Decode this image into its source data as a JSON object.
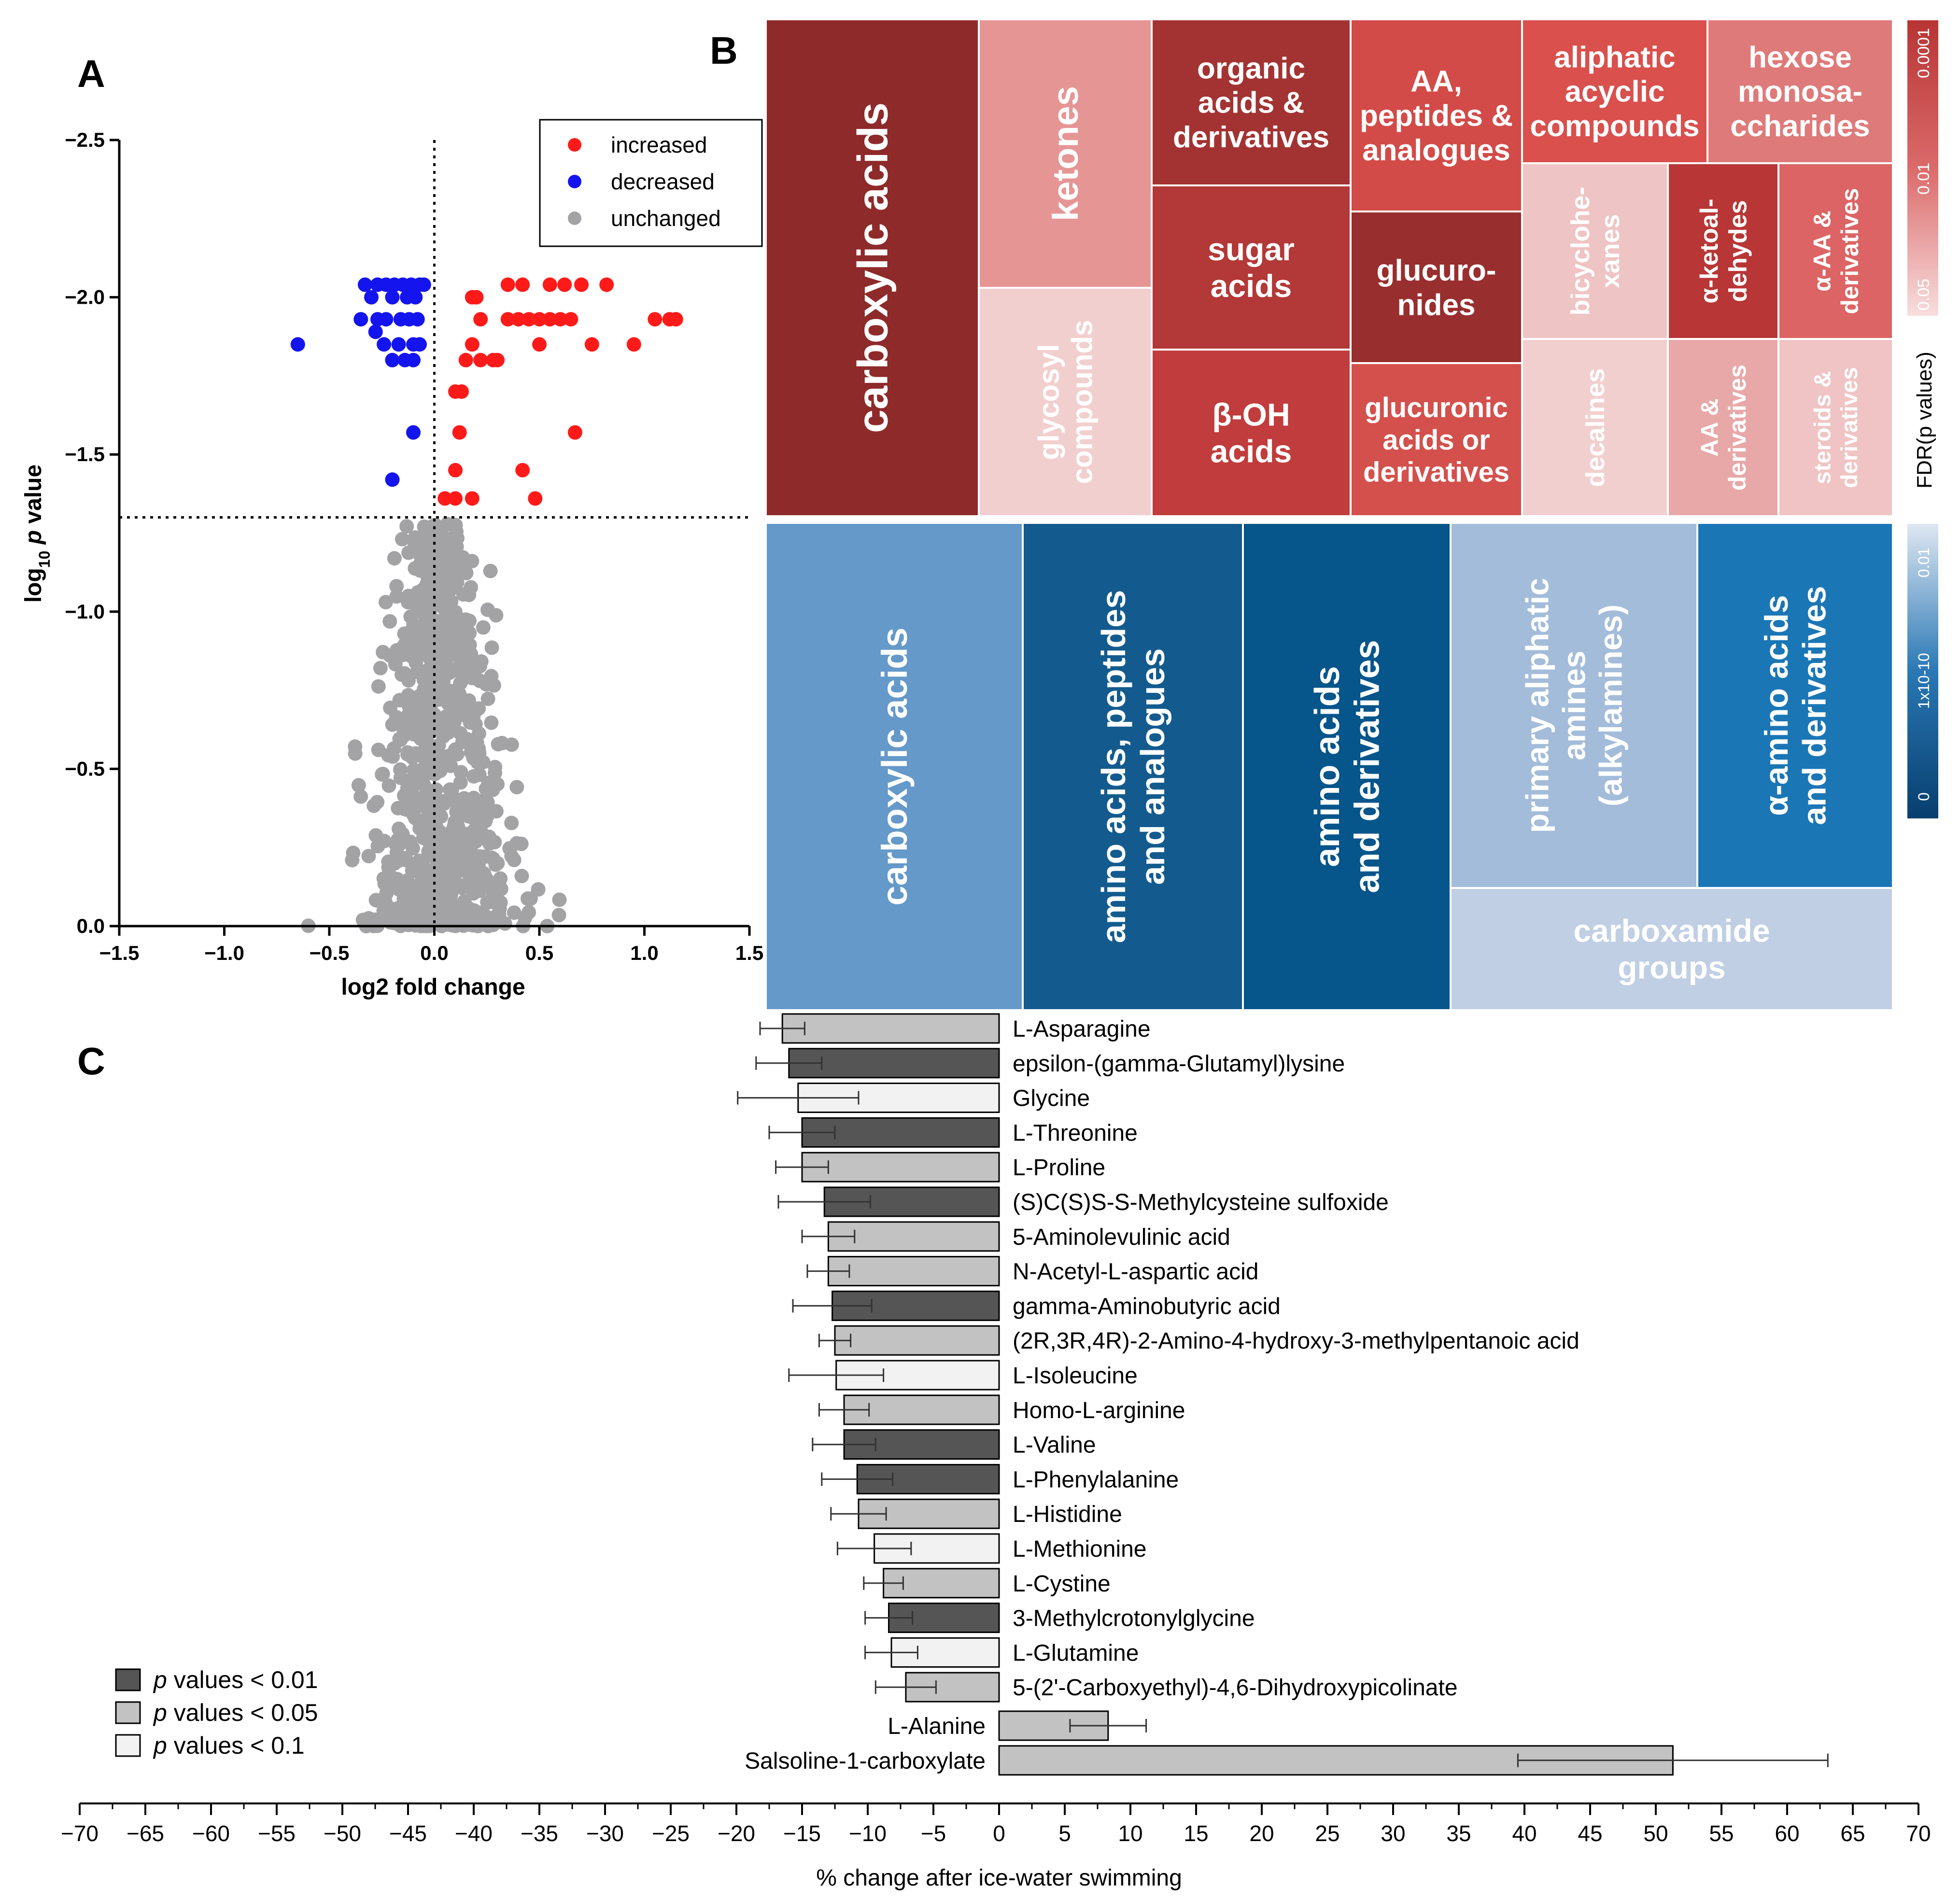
{
  "panel_letters": {
    "a": "A",
    "b": "B",
    "c": "C"
  },
  "colors": {
    "increased": "#ff1a1a",
    "decreased": "#1414ee",
    "unchanged": "#a3a3a6",
    "p01": "#555555",
    "p05": "#c2c2c2",
    "p10": "#f2f2f2",
    "red_scale": [
      "#8f2a2a",
      "#c13c3c",
      "#d9504d",
      "#e69595",
      "#f2cfcf"
    ],
    "blue_scale": [
      "#0b4a7c",
      "#135b8e",
      "#1b76b6",
      "#6499c9",
      "#a3bcda",
      "#c0cfe4"
    ]
  },
  "chart_data": [
    {
      "type": "scatter",
      "panel": "A",
      "xlabel": "log2 fold change",
      "ylabel_main": "log",
      "ylabel_sub": "10",
      "ylabel_italic": "p",
      "ylabel_rest": "value",
      "xlim": [
        -1.5,
        1.5
      ],
      "ylim": [
        0.0,
        -2.5
      ],
      "xticks": [
        "−1.5",
        "−1.0",
        "−0.5",
        "0.0",
        "0.5",
        "1.0",
        "1.5"
      ],
      "yticks": [
        "−2.5",
        "−2.0",
        "−1.5",
        "−1.0",
        "−0.5",
        "0.0"
      ],
      "threshold_y": -1.3,
      "threshold_x": 0.0,
      "legend": [
        "increased",
        "decreased",
        "unchanged"
      ],
      "series": [
        {
          "name": "increased",
          "points": [
            [
              0.18,
              -2.0
            ],
            [
              0.2,
              -2.0
            ],
            [
              0.35,
              -2.04
            ],
            [
              0.42,
              -2.04
            ],
            [
              0.55,
              -2.04
            ],
            [
              0.62,
              -2.04
            ],
            [
              0.7,
              -2.04
            ],
            [
              0.82,
              -2.04
            ],
            [
              0.22,
              -1.93
            ],
            [
              0.35,
              -1.93
            ],
            [
              0.4,
              -1.93
            ],
            [
              0.45,
              -1.93
            ],
            [
              0.5,
              -1.93
            ],
            [
              0.55,
              -1.93
            ],
            [
              0.6,
              -1.93
            ],
            [
              0.65,
              -1.93
            ],
            [
              1.05,
              -1.93
            ],
            [
              1.12,
              -1.93
            ],
            [
              1.15,
              -1.93
            ],
            [
              0.18,
              -1.85
            ],
            [
              0.5,
              -1.85
            ],
            [
              0.75,
              -1.85
            ],
            [
              0.95,
              -1.85
            ],
            [
              0.15,
              -1.8
            ],
            [
              0.22,
              -1.8
            ],
            [
              0.28,
              -1.8
            ],
            [
              0.3,
              -1.8
            ],
            [
              0.1,
              -1.7
            ],
            [
              0.13,
              -1.7
            ],
            [
              0.12,
              -1.57
            ],
            [
              0.67,
              -1.57
            ],
            [
              0.1,
              -1.45
            ],
            [
              0.42,
              -1.45
            ],
            [
              0.05,
              -1.36
            ],
            [
              0.1,
              -1.36
            ],
            [
              0.18,
              -1.36
            ],
            [
              0.48,
              -1.36
            ]
          ]
        },
        {
          "name": "decreased",
          "points": [
            [
              -0.33,
              -2.04
            ],
            [
              -0.27,
              -2.04
            ],
            [
              -0.23,
              -2.04
            ],
            [
              -0.19,
              -2.04
            ],
            [
              -0.15,
              -2.04
            ],
            [
              -0.11,
              -2.04
            ],
            [
              -0.07,
              -2.04
            ],
            [
              -0.05,
              -2.04
            ],
            [
              -0.3,
              -2.0
            ],
            [
              -0.2,
              -2.0
            ],
            [
              -0.13,
              -2.0
            ],
            [
              -0.09,
              -2.0
            ],
            [
              -0.35,
              -1.93
            ],
            [
              -0.27,
              -1.93
            ],
            [
              -0.23,
              -1.93
            ],
            [
              -0.16,
              -1.93
            ],
            [
              -0.12,
              -1.93
            ],
            [
              -0.08,
              -1.93
            ],
            [
              -0.28,
              -1.89
            ],
            [
              -0.65,
              -1.85
            ],
            [
              -0.24,
              -1.85
            ],
            [
              -0.17,
              -1.85
            ],
            [
              -0.1,
              -1.85
            ],
            [
              -0.07,
              -1.85
            ],
            [
              -0.2,
              -1.8
            ],
            [
              -0.14,
              -1.8
            ],
            [
              -0.1,
              -1.8
            ],
            [
              -0.1,
              -1.57
            ],
            [
              -0.2,
              -1.42
            ]
          ]
        }
      ],
      "unchanged_count": 820
    },
    {
      "type": "treemap",
      "panel": "B",
      "colorbar_title": "FDR(p values)",
      "colorbar_red_ticks": [
        "0.0001",
        "0.01",
        "0.05"
      ],
      "colorbar_blue_ticks": [
        "0.01",
        "1x10-10",
        "0"
      ],
      "increased": [
        {
          "label": "carboxylic acids",
          "lines": [
            "carboxylic acids"
          ],
          "color": "#8f2a2a",
          "text": "#ffffff",
          "rot": -90
        },
        {
          "label": "ketones",
          "lines": [
            "ketones"
          ],
          "color": "#e69595",
          "text": "#ffffff",
          "rot": -90
        },
        {
          "label": "glycosyl compounds",
          "lines": [
            "glycosyl",
            "compounds"
          ],
          "color": "#f2cfcf",
          "text": "#ffffff",
          "rot": -90
        },
        {
          "label": "organic acids & derivatives",
          "lines": [
            "organic",
            "acids &",
            "derivatives"
          ],
          "color": "#a33333",
          "text": "#ffffff",
          "rot": 0
        },
        {
          "label": "sugar acids",
          "lines": [
            "sugar",
            "acids"
          ],
          "color": "#b33838",
          "text": "#ffffff",
          "rot": 0
        },
        {
          "label": "β-OH acids",
          "lines": [
            "β-OH",
            "acids"
          ],
          "color": "#c13c3c",
          "text": "#ffffff",
          "rot": 0
        },
        {
          "label": "AA, peptides & analogues",
          "lines": [
            "AA,",
            "peptides &",
            "analogues"
          ],
          "color": "#d24b48",
          "text": "#ffffff",
          "rot": 0
        },
        {
          "label": "glucuronides",
          "lines": [
            "glucuro-",
            "nides"
          ],
          "color": "#992e2e",
          "text": "#ffffff",
          "rot": 0
        },
        {
          "label": "glucuronic acids or derivatives",
          "lines": [
            "glucuronic",
            "acids or",
            "derivatives"
          ],
          "color": "#d4504c",
          "text": "#ffffff",
          "rot": 0
        },
        {
          "label": "aliphatic acyclic compounds",
          "lines": [
            "aliphatic",
            "acyclic",
            "compounds"
          ],
          "color": "#d9504d",
          "text": "#ffffff",
          "rot": 0
        },
        {
          "label": "hexose monosaccharides",
          "lines": [
            "hexose",
            "monosa-",
            "ccharides"
          ],
          "color": "#df7a7a",
          "text": "#ffffff",
          "rot": 0
        },
        {
          "label": "bicyclohexanes",
          "lines": [
            "bicyclohe-",
            "xanes"
          ],
          "color": "#efc4c4",
          "text": "#ffffff",
          "rot": -90
        },
        {
          "label": "α-ketoaldehydes",
          "lines": [
            "α-ketoal-",
            "dehydes"
          ],
          "color": "#b83636",
          "text": "#ffffff",
          "rot": -90
        },
        {
          "label": "α-AA & derivatives",
          "lines": [
            "α-AA &",
            "derivatives"
          ],
          "color": "#dc6464",
          "text": "#ffffff",
          "rot": -90
        },
        {
          "label": "decalines",
          "lines": [
            "decalines"
          ],
          "color": "#f2cfcf",
          "text": "#ffffff",
          "rot": -90
        },
        {
          "label": "AA & derivatives",
          "lines": [
            "AA &",
            "derivatives"
          ],
          "color": "#e8a8a8",
          "text": "#ffffff",
          "rot": -90
        },
        {
          "label": "steroids & derivatives",
          "lines": [
            "steroids &",
            "derivatives"
          ],
          "color": "#f0c4c4",
          "text": "#ffffff",
          "rot": -90
        }
      ],
      "decreased": [
        {
          "label": "carboxylic acids",
          "lines": [
            "carboxylic acids"
          ],
          "color": "#6499c9",
          "text": "#ffffff",
          "rot": -90
        },
        {
          "label": "amino acids, peptides and analogues",
          "lines": [
            "amino acids, peptides",
            "and analogues"
          ],
          "color": "#135b8e",
          "text": "#ffffff",
          "rot": -90
        },
        {
          "label": "amino acids and derivatives",
          "lines": [
            "amino acids",
            "and derivatives"
          ],
          "color": "#06558b",
          "text": "#ffffff",
          "rot": -90
        },
        {
          "label": "primary aliphatic amines (alkylamines)",
          "lines": [
            "primary aliphatic",
            "amines",
            "(alkylamines)"
          ],
          "color": "#a3bcda",
          "text": "#ffffff",
          "rot": -90
        },
        {
          "label": "α-amino acids and derivatives",
          "lines": [
            "α-amino acids",
            "and derivatives"
          ],
          "color": "#1b76b6",
          "text": "#ffffff",
          "rot": -90
        },
        {
          "label": "carboxamide groups",
          "lines": [
            "carboxamide",
            "groups"
          ],
          "color": "#c0cfe4",
          "text": "#ffffff",
          "rot": 0
        }
      ]
    },
    {
      "type": "bar",
      "panel": "C",
      "orientation": "horizontal",
      "xlabel": "% change after ice-water swimming",
      "xlim": [
        -70,
        70
      ],
      "xticks": [
        -70,
        -65,
        -60,
        -55,
        -50,
        -45,
        -40,
        -35,
        -30,
        -25,
        -20,
        -15,
        -10,
        -5,
        0,
        5,
        10,
        15,
        20,
        25,
        30,
        35,
        40,
        45,
        50,
        55,
        60,
        65,
        70
      ],
      "xtick_labels": [
        "−70",
        "−65",
        "−60",
        "−55",
        "−50",
        "−45",
        "−40",
        "−35",
        "−30",
        "−25",
        "−20",
        "−15",
        "−10",
        "−5",
        "0",
        "5",
        "10",
        "15",
        "20",
        "25",
        "30",
        "35",
        "40",
        "45",
        "50",
        "55",
        "60",
        "65",
        "70"
      ],
      "legend": [
        {
          "italic": "p",
          "text": " values < 0.01",
          "sig": "p01"
        },
        {
          "italic": "p",
          "text": " values < 0.05",
          "sig": "p05"
        },
        {
          "italic": "p",
          "text": " values < 0.1",
          "sig": "p10"
        }
      ],
      "bars": [
        {
          "label": "L-Asparagine",
          "value": -16.5,
          "err": 1.7,
          "sig": "p05"
        },
        {
          "label": "epsilon-(gamma-Glutamyl)lysine",
          "value": -16.0,
          "err": 2.5,
          "sig": "p01"
        },
        {
          "label": "Glycine",
          "value": -15.3,
          "err": 4.6,
          "sig": "p10"
        },
        {
          "label": "L-Threonine",
          "value": -15.0,
          "err": 2.5,
          "sig": "p01"
        },
        {
          "label": "L-Proline",
          "value": -15.0,
          "err": 2.0,
          "sig": "p05"
        },
        {
          "label": "(S)C(S)S-S-Methylcysteine sulfoxide",
          "value": -13.3,
          "err": 3.5,
          "sig": "p01"
        },
        {
          "label": "5-Aminolevulinic acid",
          "value": -13.0,
          "err": 2.0,
          "sig": "p05"
        },
        {
          "label": "N-Acetyl-L-aspartic acid",
          "value": -13.0,
          "err": 1.6,
          "sig": "p05"
        },
        {
          "label": "gamma-Aminobutyric acid",
          "value": -12.7,
          "err": 3.0,
          "sig": "p01"
        },
        {
          "label": "(2R,3R,4R)-2-Amino-4-hydroxy-3-methylpentanoic acid",
          "value": -12.5,
          "err": 1.2,
          "sig": "p05"
        },
        {
          "label": "L-Isoleucine",
          "value": -12.4,
          "err": 3.6,
          "sig": "p10"
        },
        {
          "label": "Homo-L-arginine",
          "value": -11.8,
          "err": 1.9,
          "sig": "p05"
        },
        {
          "label": "L-Valine",
          "value": -11.8,
          "err": 2.4,
          "sig": "p01"
        },
        {
          "label": "L-Phenylalanine",
          "value": -10.8,
          "err": 2.7,
          "sig": "p01"
        },
        {
          "label": "L-Histidine",
          "value": -10.7,
          "err": 2.1,
          "sig": "p05"
        },
        {
          "label": "L-Methionine",
          "value": -9.5,
          "err": 2.8,
          "sig": "p10"
        },
        {
          "label": "L-Cystine",
          "value": -8.8,
          "err": 1.5,
          "sig": "p05"
        },
        {
          "label": "3-Methylcrotonylglycine",
          "value": -8.4,
          "err": 1.8,
          "sig": "p01"
        },
        {
          "label": "L-Glutamine",
          "value": -8.2,
          "err": 2.0,
          "sig": "p10"
        },
        {
          "label": "5-(2'-Carboxyethyl)-4,6-Dihydroxypicolinate",
          "value": -7.1,
          "err": 2.3,
          "sig": "p05"
        },
        {
          "label": "L-Alanine",
          "value": 8.3,
          "err": 2.9,
          "sig": "p05"
        },
        {
          "label": "Salsoline-1-carboxylate",
          "value": 51.3,
          "err": 11.8,
          "sig": "p05"
        }
      ]
    }
  ]
}
